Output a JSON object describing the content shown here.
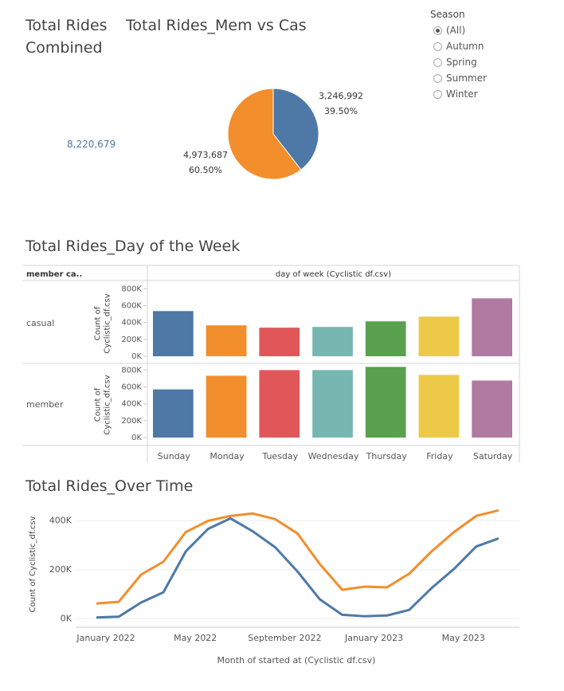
{
  "kpi": {
    "title": "Total Rides Combined",
    "value": "8,220,679"
  },
  "filter": {
    "title": "Season",
    "options": [
      "(All)",
      "Autumn",
      "Spring",
      "Summer",
      "Winter"
    ],
    "selected": 0
  },
  "chart_data": [
    {
      "type": "pie",
      "title": "Total Rides_Mem vs Cas",
      "values": [
        3246992,
        4973687
      ],
      "value_labels": [
        "3,246,992",
        "4,973,687"
      ],
      "percents": [
        39.5,
        60.5
      ],
      "percent_labels": [
        "39.50%",
        "60.50%"
      ],
      "colors": [
        "#4e79a7",
        "#f28e2b"
      ]
    },
    {
      "type": "bar",
      "title": "Total Rides_Day of the Week",
      "row_header": "member ca..",
      "column_header": "day of week (Cyclistic df.csv)",
      "ylabel": "Count of Cyclistic_df.csv",
      "categories": [
        "Sunday",
        "Monday",
        "Tuesday",
        "Wednesday",
        "Thursday",
        "Friday",
        "Saturday"
      ],
      "colors": [
        "#4e79a7",
        "#f28e2b",
        "#e15759",
        "#76b7b2",
        "#59a14f",
        "#edc948",
        "#b07aa1"
      ],
      "panels": [
        {
          "name": "casual",
          "values": [
            536000,
            367000,
            339000,
            348000,
            414000,
            470000,
            687000
          ]
        },
        {
          "name": "member",
          "values": [
            571000,
            733000,
            800000,
            800000,
            838000,
            743000,
            676000
          ]
        }
      ],
      "ylim": [
        0,
        860000
      ],
      "yticks": [
        {
          "value": 0,
          "label": "0K"
        },
        {
          "value": 200000,
          "label": "200K"
        },
        {
          "value": 400000,
          "label": "400K"
        },
        {
          "value": 600000,
          "label": "600K"
        },
        {
          "value": 800000,
          "label": "800K"
        }
      ]
    },
    {
      "type": "line",
      "title": "Total Rides_Over Time",
      "xlabel": "Month of started at (Cyclistic df.csv)",
      "ylabel": "Count of Cyclistic_df.csv",
      "categories": [
        "January 2022",
        null,
        null,
        null,
        "May 2022",
        null,
        null,
        null,
        "September 2022",
        null,
        null,
        null,
        "January 2023",
        null,
        null,
        null,
        "May 2023",
        null,
        null
      ],
      "series": [
        {
          "color": "#f28e2b",
          "values": [
            62000,
            69000,
            180000,
            233000,
            354000,
            400000,
            420000,
            430000,
            407000,
            348000,
            223000,
            118000,
            131000,
            128000,
            184000,
            275000,
            354000,
            420000,
            443000
          ]
        },
        {
          "color": "#4e79a7",
          "values": [
            5000,
            8000,
            66000,
            108000,
            275000,
            367000,
            410000,
            357000,
            292000,
            193000,
            79000,
            16000,
            10000,
            13000,
            36000,
            125000,
            203000,
            295000,
            328000
          ]
        }
      ],
      "ylim": [
        -35000,
        470000
      ],
      "yticks": [
        {
          "value": 0,
          "label": "0K"
        },
        {
          "value": 200000,
          "label": "200K"
        },
        {
          "value": 400000,
          "label": "400K"
        }
      ],
      "grid": true
    }
  ]
}
